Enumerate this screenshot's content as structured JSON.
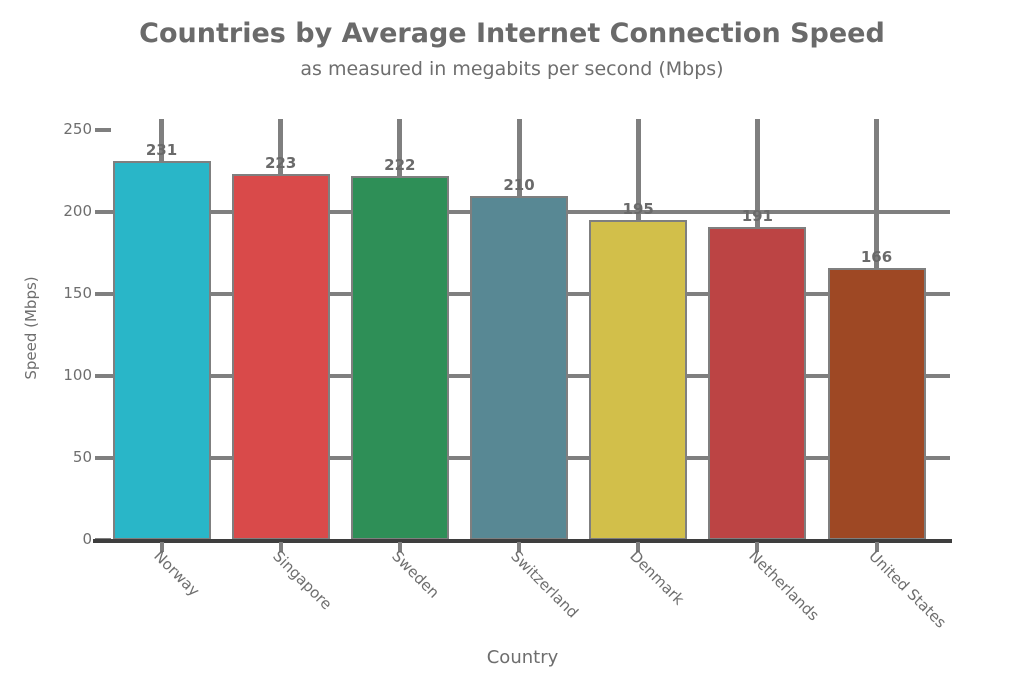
{
  "chart_data": {
    "type": "bar",
    "title": "Countries by Average Internet Connection Speed",
    "subtitle": "as measured in megabits per second (Mbps)",
    "xlabel": "Country",
    "ylabel": "Speed (Mbps)",
    "categories": [
      "Norway",
      "Singapore",
      "Sweden",
      "Switzerland",
      "Denmark",
      "Netherlands",
      "United States"
    ],
    "values": [
      231,
      223,
      222,
      210,
      195,
      191,
      166
    ],
    "value_labels": [
      "231",
      "223",
      "222",
      "210",
      "195",
      "191",
      "166"
    ],
    "bar_colors": [
      "#29b6c8",
      "#d94a4a",
      "#2e8f57",
      "#588894",
      "#d2bf4a",
      "#bc4444",
      "#9e4824"
    ],
    "bar_edge_color": "#7f7f7f",
    "yticks": [
      "0",
      "50",
      "100",
      "150",
      "200",
      "250"
    ],
    "ylim": [
      0,
      250
    ],
    "grid": true,
    "legend": false,
    "grid_color": "#7f7f7f",
    "axis_color": "#3e3e3e",
    "text_color": "#6e6e6e",
    "background": "#ffffff"
  }
}
